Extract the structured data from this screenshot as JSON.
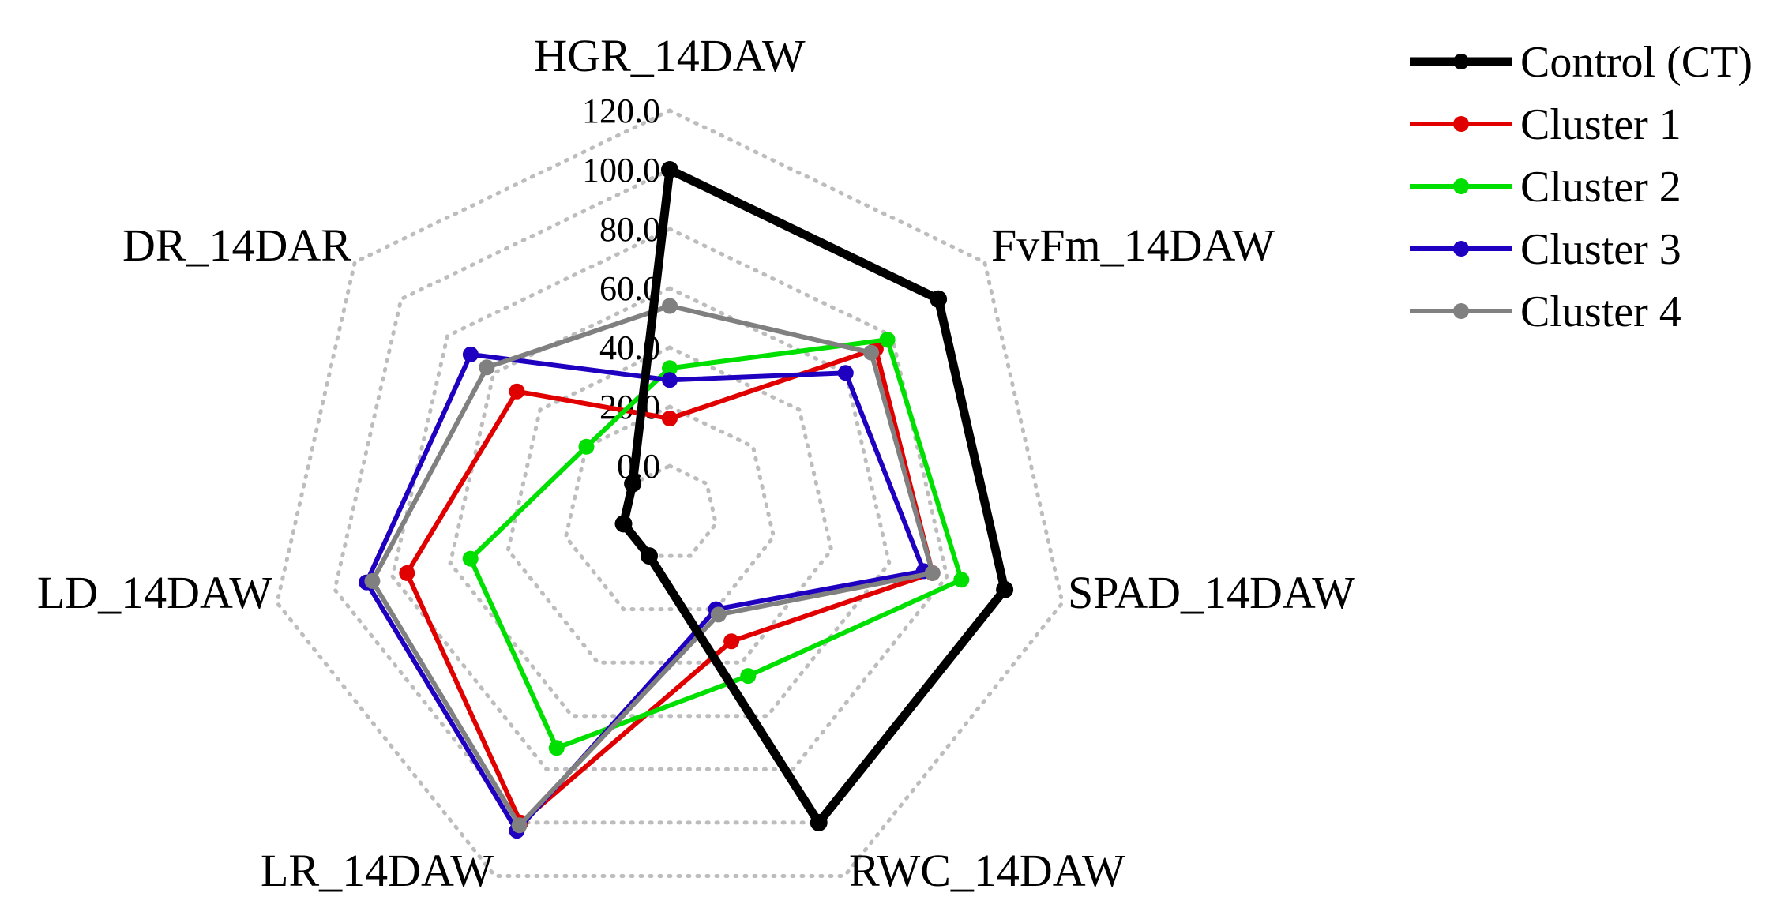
{
  "chart_data": {
    "type": "radar",
    "axes": [
      "HGR_14DAW",
      "FvFm_14DAW",
      "SPAD_14DAW",
      "RWC_14DAW",
      "LR_14DAW",
      "LD_14DAW",
      "DR_14DAR"
    ],
    "ticks": [
      "0.0",
      "20.0",
      "40.0",
      "60.0",
      "80.0",
      "100.0",
      "120.0"
    ],
    "rlim": [
      0,
      120
    ],
    "grid": true,
    "legend_position": "top-right",
    "series": [
      {
        "name": "Control (CT)",
        "color": "#000000",
        "values": [
          100,
          100,
          100,
          100,
          0,
          0,
          0
        ]
      },
      {
        "name": "Cluster 1",
        "color": "#e00000",
        "values": [
          16,
          73,
          75,
          32,
          100,
          75,
          50
        ]
      },
      {
        "name": "Cluster 2",
        "color": "#00e000",
        "values": [
          33,
          78,
          85,
          45,
          72,
          53,
          20
        ]
      },
      {
        "name": "Cluster 3",
        "color": "#2000c0",
        "values": [
          29,
          60,
          72,
          20,
          103,
          89,
          70
        ]
      },
      {
        "name": "Cluster 4",
        "color": "#808080",
        "values": [
          54,
          71,
          75,
          22,
          101,
          87,
          63
        ]
      }
    ]
  }
}
